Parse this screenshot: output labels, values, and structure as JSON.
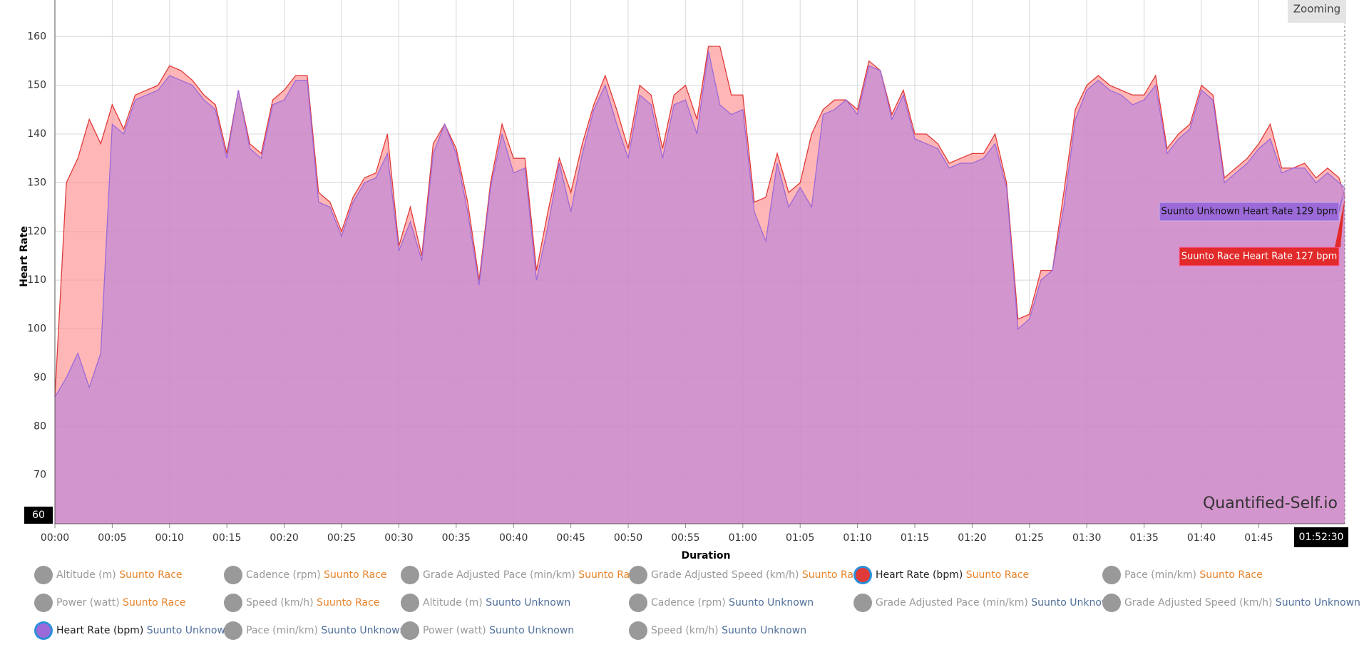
{
  "chart_data": {
    "type": "area",
    "y_label": "Heart Rate",
    "x_label": "Duration",
    "xlim": [
      0,
      112.5
    ],
    "ylim": [
      60,
      167.5
    ],
    "yticks": [
      60,
      70,
      80,
      90,
      100,
      110,
      120,
      130,
      140,
      150,
      160
    ],
    "xticks": [
      {
        "value": 0,
        "label": "00:00"
      },
      {
        "value": 5,
        "label": "00:05"
      },
      {
        "value": 10,
        "label": "00:10"
      },
      {
        "value": 15,
        "label": "00:15"
      },
      {
        "value": 20,
        "label": "00:20"
      },
      {
        "value": 25,
        "label": "00:25"
      },
      {
        "value": 30,
        "label": "00:30"
      },
      {
        "value": 35,
        "label": "00:35"
      },
      {
        "value": 40,
        "label": "00:40"
      },
      {
        "value": 45,
        "label": "00:45"
      },
      {
        "value": 50,
        "label": "00:50"
      },
      {
        "value": 55,
        "label": "00:55"
      },
      {
        "value": 60,
        "label": "01:00"
      },
      {
        "value": 65,
        "label": "01:05"
      },
      {
        "value": 70,
        "label": "01:10"
      },
      {
        "value": 75,
        "label": "01:15"
      },
      {
        "value": 80,
        "label": "01:20"
      },
      {
        "value": 85,
        "label": "01:25"
      },
      {
        "value": 90,
        "label": "01:30"
      },
      {
        "value": 95,
        "label": "01:35"
      },
      {
        "value": 100,
        "label": "01:40"
      },
      {
        "value": 105,
        "label": "01:45"
      }
    ],
    "grid": true,
    "x": [
      0,
      1,
      2,
      3,
      4,
      5,
      6,
      7,
      8,
      9,
      10,
      11,
      12,
      13,
      14,
      15,
      16,
      17,
      18,
      19,
      20,
      21,
      22,
      23,
      24,
      25,
      26,
      27,
      28,
      29,
      30,
      31,
      32,
      33,
      34,
      35,
      36,
      37,
      38,
      39,
      40,
      41,
      42,
      43,
      44,
      45,
      46,
      47,
      48,
      49,
      50,
      51,
      52,
      53,
      54,
      55,
      56,
      57,
      58,
      59,
      60,
      61,
      62,
      63,
      64,
      65,
      66,
      67,
      68,
      69,
      70,
      71,
      72,
      73,
      74,
      75,
      76,
      77,
      78,
      79,
      80,
      81,
      82,
      83,
      84,
      85,
      86,
      87,
      88,
      89,
      90,
      91,
      92,
      93,
      94,
      95,
      96,
      97,
      98,
      99,
      100,
      101,
      102,
      103,
      104,
      105,
      106,
      107,
      108,
      109,
      110,
      111,
      112,
      112.5
    ],
    "series": [
      {
        "name": "Suunto Race",
        "color": "#e03a3a",
        "fill": "#ff8f8f",
        "values": [
          86,
          130,
          135,
          143,
          138,
          146,
          141,
          148,
          149,
          150,
          154,
          153,
          151,
          148,
          146,
          136,
          149,
          138,
          136,
          147,
          149,
          152,
          152,
          128,
          126,
          120,
          127,
          131,
          132,
          140,
          117,
          125,
          115,
          138,
          142,
          137,
          126,
          110,
          130,
          142,
          135,
          135,
          112,
          124,
          135,
          128,
          138,
          146,
          152,
          145,
          137,
          150,
          148,
          137,
          148,
          150,
          143,
          158,
          158,
          148,
          148,
          126,
          127,
          136,
          128,
          130,
          140,
          145,
          147,
          147,
          145,
          155,
          153,
          144,
          149,
          140,
          140,
          138,
          134,
          135,
          136,
          136,
          140,
          130,
          102,
          103,
          112,
          112,
          128,
          145,
          150,
          152,
          150,
          149,
          148,
          148,
          152,
          137,
          140,
          142,
          150,
          148,
          131,
          133,
          135,
          138,
          142,
          133,
          133,
          134,
          131,
          133,
          131,
          127
        ]
      },
      {
        "name": "Suunto Unknown",
        "color": "#9b6ad8",
        "fill": "#c48ad4",
        "values": [
          86,
          90,
          95,
          88,
          95,
          142,
          140,
          147,
          148,
          149,
          152,
          151,
          150,
          147,
          145,
          135,
          149,
          137,
          135,
          146,
          147,
          151,
          151,
          126,
          125,
          119,
          126,
          130,
          131,
          136,
          116,
          122,
          114,
          136,
          142,
          136,
          124,
          109,
          129,
          140,
          132,
          133,
          110,
          121,
          134,
          124,
          136,
          145,
          150,
          142,
          135,
          148,
          146,
          135,
          146,
          147,
          140,
          157,
          146,
          144,
          145,
          124,
          118,
          134,
          125,
          129,
          125,
          144,
          145,
          147,
          144,
          154,
          153,
          143,
          148,
          139,
          138,
          137,
          133,
          134,
          134,
          135,
          138,
          129,
          100,
          102,
          110,
          112,
          125,
          143,
          149,
          151,
          149,
          148,
          146,
          147,
          150,
          136,
          139,
          141,
          149,
          147,
          130,
          132,
          134,
          137,
          139,
          132,
          133,
          133,
          130,
          132,
          130,
          129
        ]
      }
    ],
    "tooltips": [
      "Suunto Unknown Heart Rate 129 bpm",
      "Suunto Race Heart Rate 127 bpm"
    ],
    "cursor_x_label": "01:52:30",
    "watermark": "Quantified-Self.io",
    "zoom_button": "Zooming"
  },
  "legend": [
    {
      "label": "Altitude (m)",
      "source": "Suunto Race"
    },
    {
      "label": "Cadence (rpm)",
      "source": "Suunto Race"
    },
    {
      "label": "Grade Adjusted Pace (min/km)",
      "source": "Suunto Race"
    },
    {
      "label": "Grade Adjusted Speed (km/h)",
      "source": "Suunto Race"
    },
    {
      "label": "Heart Rate (bpm)",
      "source": "Suunto Race",
      "active": true,
      "color": "#e03a3a"
    },
    {
      "label": "Pace (min/km)",
      "source": "Suunto Race"
    },
    {
      "label": "Power (watt)",
      "source": "Suunto Race"
    },
    {
      "label": "Speed (km/h)",
      "source": "Suunto Race"
    },
    {
      "label": "Altitude (m)",
      "source": "Suunto Unknown"
    },
    {
      "label": "Cadence (rpm)",
      "source": "Suunto Unknown"
    },
    {
      "label": "Grade Adjusted Pace (min/km)",
      "source": "Suunto Unknown"
    },
    {
      "label": "Grade Adjusted Speed (km/h)",
      "source": "Suunto Unknown"
    },
    {
      "label": "Heart Rate (bpm)",
      "source": "Suunto Unknown",
      "active": true,
      "color": "#9b6ad8"
    },
    {
      "label": "Pace (min/km)",
      "source": "Suunto Unknown"
    },
    {
      "label": "Power (watt)",
      "source": "Suunto Unknown"
    },
    {
      "label": "Speed (km/h)",
      "source": "Suunto Unknown"
    }
  ]
}
